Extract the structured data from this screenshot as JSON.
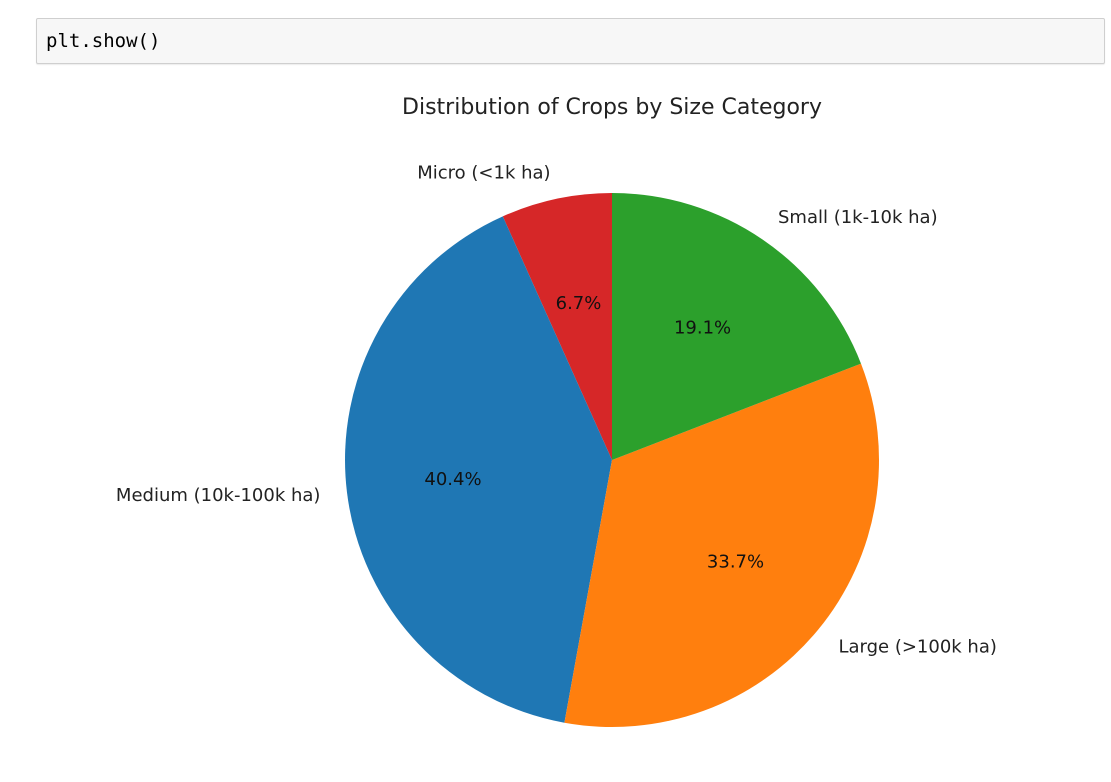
{
  "code_cell": {
    "code": "plt.show()"
  },
  "chart_data": {
    "type": "pie",
    "title": "Distribution of Crops by Size Category",
    "start_angle_deg": 90,
    "direction": "counterclockwise",
    "slices": [
      {
        "label": "Micro (<1k ha)",
        "value": 6.7,
        "pct_label": "6.7%",
        "color": "#d62728"
      },
      {
        "label": "Medium (10k-100k ha)",
        "value": 40.4,
        "pct_label": "40.4%",
        "color": "#1f77b4"
      },
      {
        "label": "Large (>100k ha)",
        "value": 33.7,
        "pct_label": "33.7%",
        "color": "#ff7f0e"
      },
      {
        "label": "Small (1k-10k ha)",
        "value": 19.1,
        "pct_label": "19.1%",
        "color": "#2ca02c"
      }
    ]
  }
}
